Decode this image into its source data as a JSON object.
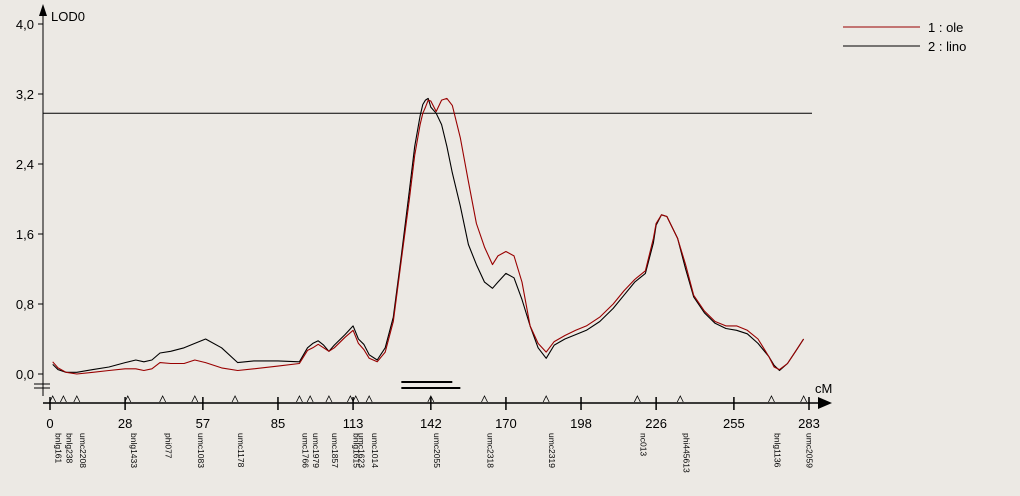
{
  "chart_data": {
    "type": "line",
    "y_axis_title": "LOD0",
    "x_axis_unit": "cM",
    "xlim": [
      0,
      283
    ],
    "ylim": [
      0,
      4.0
    ],
    "x_ticks": [
      0,
      28,
      57,
      85,
      113,
      142,
      170,
      198,
      226,
      255,
      283
    ],
    "x_tick_labels": [
      "0",
      "28",
      "57",
      "85",
      "113",
      "142",
      "170",
      "198",
      "226",
      "255",
      "283"
    ],
    "y_ticks": [
      0,
      0.8,
      1.6,
      2.4,
      3.2,
      4.0
    ],
    "y_tick_labels": [
      "0,0",
      "0,8",
      "1,6",
      "2,4",
      "3,2",
      "4,0"
    ],
    "threshold": 2.98,
    "legend": [
      {
        "label": "1 : ole",
        "color": "#990000"
      },
      {
        "label": "2 : lino",
        "color": "#000000"
      }
    ],
    "series": [
      {
        "name": "1 : ole",
        "color": "#990000",
        "x": [
          1,
          3,
          6,
          10,
          16,
          22,
          28,
          32,
          35,
          38,
          41,
          45,
          50,
          54,
          58,
          64,
          70,
          76,
          85,
          93,
          96,
          98,
          100,
          102,
          104,
          106,
          110,
          113,
          115,
          117,
          119,
          122,
          125,
          128,
          131,
          134,
          136,
          138,
          139,
          140,
          141,
          142,
          144,
          146,
          148,
          150,
          153,
          156,
          159,
          162,
          165,
          167,
          170,
          173,
          176,
          179,
          182,
          185,
          188,
          192,
          196,
          200,
          205,
          210,
          214,
          218,
          222,
          225,
          226,
          228,
          230,
          234,
          237,
          240,
          244,
          248,
          252,
          256,
          260,
          264,
          268,
          270,
          272,
          275,
          278,
          281
        ],
        "y": [
          0.14,
          0.07,
          0.02,
          0.0,
          0.02,
          0.04,
          0.06,
          0.06,
          0.04,
          0.06,
          0.13,
          0.12,
          0.12,
          0.16,
          0.13,
          0.07,
          0.04,
          0.06,
          0.09,
          0.12,
          0.27,
          0.3,
          0.34,
          0.3,
          0.26,
          0.3,
          0.42,
          0.5,
          0.35,
          0.28,
          0.18,
          0.14,
          0.25,
          0.6,
          1.3,
          2.0,
          2.5,
          2.85,
          2.98,
          3.05,
          3.13,
          3.12,
          3.0,
          3.13,
          3.15,
          3.07,
          2.7,
          2.2,
          1.72,
          1.45,
          1.25,
          1.35,
          1.4,
          1.35,
          1.05,
          0.55,
          0.35,
          0.25,
          0.37,
          0.44,
          0.5,
          0.55,
          0.65,
          0.8,
          0.95,
          1.08,
          1.18,
          1.55,
          1.72,
          1.82,
          1.8,
          1.55,
          1.25,
          0.9,
          0.72,
          0.6,
          0.55,
          0.55,
          0.5,
          0.4,
          0.2,
          0.08,
          0.05,
          0.12,
          0.26,
          0.4
        ]
      },
      {
        "name": "2 : lino",
        "color": "#000000",
        "x": [
          1,
          3,
          6,
          10,
          16,
          22,
          28,
          32,
          35,
          38,
          41,
          45,
          50,
          54,
          58,
          64,
          70,
          76,
          85,
          93,
          96,
          98,
          100,
          102,
          104,
          106,
          110,
          113,
          115,
          117,
          119,
          122,
          125,
          128,
          131,
          134,
          136,
          138,
          139,
          140,
          141,
          142,
          144,
          146,
          148,
          150,
          153,
          156,
          159,
          162,
          165,
          167,
          170,
          173,
          176,
          179,
          182,
          185,
          188,
          192,
          196,
          200,
          205,
          210,
          214,
          218,
          222,
          225,
          226,
          228,
          230,
          234,
          237,
          240,
          244,
          248,
          252,
          256,
          260,
          264,
          268,
          270,
          272,
          275,
          278,
          281
        ],
        "y": [
          0.11,
          0.05,
          0.02,
          0.02,
          0.05,
          0.08,
          0.13,
          0.16,
          0.14,
          0.16,
          0.24,
          0.26,
          0.3,
          0.35,
          0.4,
          0.3,
          0.13,
          0.15,
          0.15,
          0.14,
          0.3,
          0.35,
          0.38,
          0.33,
          0.26,
          0.33,
          0.45,
          0.55,
          0.4,
          0.34,
          0.22,
          0.16,
          0.3,
          0.65,
          1.35,
          2.1,
          2.6,
          2.95,
          3.08,
          3.13,
          3.15,
          3.05,
          2.98,
          2.85,
          2.6,
          2.3,
          1.92,
          1.48,
          1.25,
          1.05,
          0.98,
          1.05,
          1.15,
          1.1,
          0.85,
          0.55,
          0.3,
          0.18,
          0.33,
          0.4,
          0.45,
          0.5,
          0.6,
          0.75,
          0.9,
          1.05,
          1.15,
          1.5,
          1.7,
          1.82,
          1.8,
          1.55,
          1.2,
          0.88,
          0.7,
          0.58,
          0.52,
          0.5,
          0.46,
          0.35,
          0.2,
          0.1,
          0.04,
          0.12,
          0.26,
          0.4
        ]
      }
    ],
    "confidence_bars": [
      [
        131,
        150
      ],
      [
        131,
        153
      ]
    ],
    "markers": [
      {
        "name": "bnlg161",
        "pos": 1
      },
      {
        "name": "bnlg238",
        "pos": 5
      },
      {
        "name": "umc2208",
        "pos": 10
      },
      {
        "name": "bnlg1433",
        "pos": 29
      },
      {
        "name": "phi077",
        "pos": 42
      },
      {
        "name": "umc1083",
        "pos": 54
      },
      {
        "name": "umc1178",
        "pos": 69
      },
      {
        "name": "umc1766",
        "pos": 93
      },
      {
        "name": "umc1979",
        "pos": 97
      },
      {
        "name": "umc1857",
        "pos": 104
      },
      {
        "name": "bnlg1615",
        "pos": 112
      },
      {
        "name": "umc1623",
        "pos": 114
      },
      {
        "name": "umc1014",
        "pos": 119
      },
      {
        "name": "umc2055",
        "pos": 142
      },
      {
        "name": "umc2318",
        "pos": 162
      },
      {
        "name": "umc2319",
        "pos": 185
      },
      {
        "name": "nc013",
        "pos": 219
      },
      {
        "name": "phi445613",
        "pos": 235
      },
      {
        "name": "bnlg1136",
        "pos": 269
      },
      {
        "name": "umc2059",
        "pos": 281
      }
    ]
  }
}
